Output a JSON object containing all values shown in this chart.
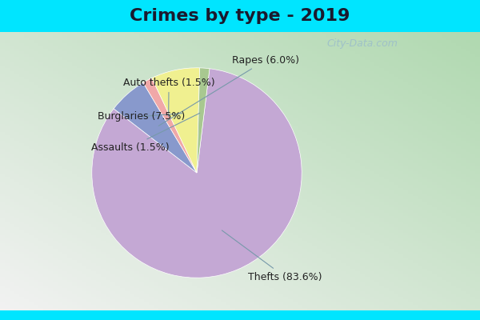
{
  "title": "Crimes by type - 2019",
  "slices": [
    {
      "label": "Thefts",
      "pct": 83.6,
      "color": "#c4a8d4"
    },
    {
      "label": "Rapes",
      "pct": 6.0,
      "color": "#8899cc"
    },
    {
      "label": "Auto thefts",
      "pct": 1.5,
      "color": "#f0a8a8"
    },
    {
      "label": "Burglaries",
      "pct": 7.5,
      "color": "#f0f090"
    },
    {
      "label": "Assaults",
      "pct": 1.5,
      "color": "#a8c890"
    }
  ],
  "title_bg": "#00e5ff",
  "chart_bg_top_left": "#b8ddb8",
  "chart_bg_bottom_right": "#e8f4f0",
  "title_fontsize": 16,
  "annotation_fontsize": 9,
  "watermark": "City-Data.com"
}
